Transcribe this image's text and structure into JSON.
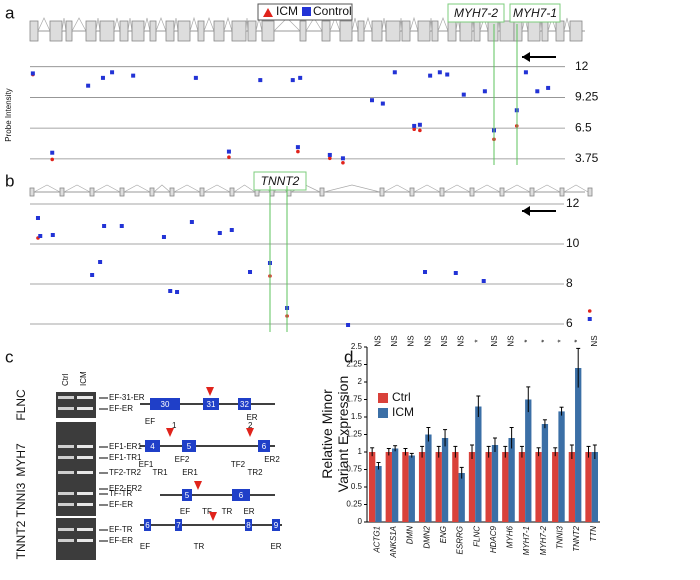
{
  "panels": [
    "a",
    "b",
    "c",
    "d"
  ],
  "chart_data": [
    {
      "type": "scatter",
      "y_label": "Probe Intensity",
      "highlights": [
        "MYH7-2",
        "MYH7-1"
      ],
      "x": [
        0.5,
        3.9,
        10.2,
        12.8,
        14.4,
        18.1,
        29.1,
        34.9,
        40.4,
        46.1,
        47.0,
        47.4,
        52.6,
        54.9,
        60.0,
        61.9,
        64.0,
        67.4,
        68.4,
        70.2,
        71.9,
        73.2,
        76.1,
        79.8,
        81.4,
        85.4,
        87.0,
        89.0,
        90.9
      ],
      "series": [
        {
          "name": "ICM",
          "color": "#e0231b",
          "values": [
            11.3,
            3.7,
            10.3,
            11.0,
            11.5,
            11.2,
            11.0,
            3.9,
            10.8,
            10.8,
            4.4,
            11.0,
            3.8,
            3.4,
            9.0,
            8.7,
            11.5,
            6.4,
            6.3,
            11.2,
            11.5,
            11.3,
            9.5,
            9.8,
            5.5,
            6.7,
            11.5,
            9.8,
            10.1
          ]
        },
        {
          "name": "Control",
          "color": "#2233d6",
          "values": [
            11.4,
            4.3,
            10.3,
            11.0,
            11.5,
            11.2,
            11.0,
            4.4,
            10.8,
            10.8,
            4.8,
            11.0,
            4.1,
            3.8,
            9.0,
            8.7,
            11.5,
            6.7,
            6.8,
            11.2,
            11.5,
            11.3,
            9.5,
            9.8,
            6.3,
            8.1,
            11.5,
            9.8,
            10.1
          ]
        }
      ],
      "xlim": [
        0,
        100
      ],
      "ylim": [
        3.2,
        12.6
      ],
      "yticks": [
        12,
        9.25,
        6.5,
        3.75
      ],
      "grid": true
    },
    {
      "type": "scatter",
      "highlights": [
        "TNNT2"
      ],
      "x": [
        1.4,
        1.8,
        4.0,
        10.9,
        12.3,
        13.0,
        16.1,
        23.5,
        24.6,
        25.8,
        28.4,
        33.3,
        35.4,
        38.6,
        42.1,
        45.1,
        55.8,
        69.3,
        74.7,
        79.6,
        98.2
      ],
      "series": [
        {
          "color": "#e0231b",
          "values": [
            10.3,
            10.4,
            10.45,
            8.45,
            9.1,
            10.9,
            10.9,
            10.35,
            7.65,
            7.6,
            11.1,
            10.55,
            10.7,
            8.6,
            8.4,
            6.4,
            5.95,
            8.6,
            8.55,
            8.15,
            6.65
          ]
        },
        {
          "color": "#2233d6",
          "values": [
            11.3,
            10.4,
            10.45,
            8.45,
            9.1,
            10.9,
            10.9,
            10.35,
            7.65,
            7.6,
            11.1,
            10.55,
            10.7,
            8.6,
            9.05,
            6.8,
            5.95,
            8.6,
            8.55,
            8.15,
            6.25
          ]
        }
      ],
      "xlim": [
        0,
        100
      ],
      "ylim": [
        5.6,
        12.7
      ],
      "yticks": [
        12,
        10,
        8,
        6
      ],
      "grid": true
    },
    {
      "type": "bar",
      "y_label": "Relative Minor Variant Expression",
      "categories": [
        "ACTG1",
        "ANKS1A",
        "DMN",
        "DMN2",
        "ENG",
        "ESRRG",
        "FLNC",
        "HDAC9",
        "MYH6",
        "MYH7-1",
        "MYH7-2",
        "TNNI3",
        "TNNT2",
        "TTN"
      ],
      "significance": [
        "NS",
        "NS",
        "NS",
        "NS",
        "NS",
        "NS",
        "*",
        "NS",
        "NS",
        "*",
        "*",
        "*",
        "*",
        "NS"
      ],
      "series": [
        {
          "name": "Ctrl",
          "color": "#d9413a",
          "values": [
            1,
            1,
            1,
            1,
            1,
            1,
            1,
            1,
            1,
            1,
            1,
            1,
            1,
            1
          ],
          "errors": [
            0.06,
            0.05,
            0.05,
            0.08,
            0.08,
            0.08,
            0.1,
            0.08,
            0.08,
            0.08,
            0.06,
            0.06,
            0.1,
            0.08
          ]
        },
        {
          "name": "ICM",
          "color": "#3b6fa6",
          "values": [
            0.8,
            1.05,
            0.95,
            1.25,
            1.2,
            0.7,
            1.65,
            1.1,
            1.2,
            1.75,
            1.4,
            1.58,
            2.2,
            1.0
          ],
          "errors": [
            0.05,
            0.04,
            0.03,
            0.1,
            0.12,
            0.08,
            0.15,
            0.1,
            0.15,
            0.18,
            0.06,
            0.06,
            0.28,
            0.1
          ]
        }
      ],
      "ylim": [
        0,
        2.5
      ],
      "yticks": [
        0,
        0.25,
        0.5,
        0.75,
        1,
        1.25,
        1.5,
        1.75,
        2,
        2.25,
        2.5
      ],
      "legend": "upper-left"
    }
  ],
  "panel_c": {
    "lanes": [
      "Ctrl",
      "ICM"
    ],
    "rows": [
      {
        "gene": "FLNC",
        "bands": [
          "EF-31-ER",
          "EF-ER"
        ],
        "exons": [
          "30",
          "31",
          "32"
        ],
        "primers": [
          "EF",
          "ER"
        ]
      },
      {
        "gene": "MYH7",
        "bands": [
          "EF1-ER1",
          "EF1-TR1",
          "TF2-TR2",
          "EF2-ER2"
        ],
        "exons": [
          "4",
          "5",
          "6"
        ],
        "markers": [
          "1",
          "2"
        ],
        "primers": [
          "EF1",
          "TR1",
          "EF2",
          "ER1",
          "TF2",
          "TR2",
          "ER2"
        ]
      },
      {
        "gene": "TNNI3",
        "bands": [
          "TF-TR",
          "EF-ER"
        ],
        "exons": [
          "5",
          "6"
        ],
        "primers": [
          "EF",
          "TF",
          "TR",
          "ER"
        ]
      },
      {
        "gene": "TNNT2",
        "bands": [
          "EF-TR",
          "EF-ER"
        ],
        "exons": [
          "6",
          "7",
          "8",
          "9"
        ],
        "primers": [
          "EF",
          "TR",
          "ER"
        ]
      }
    ]
  }
}
